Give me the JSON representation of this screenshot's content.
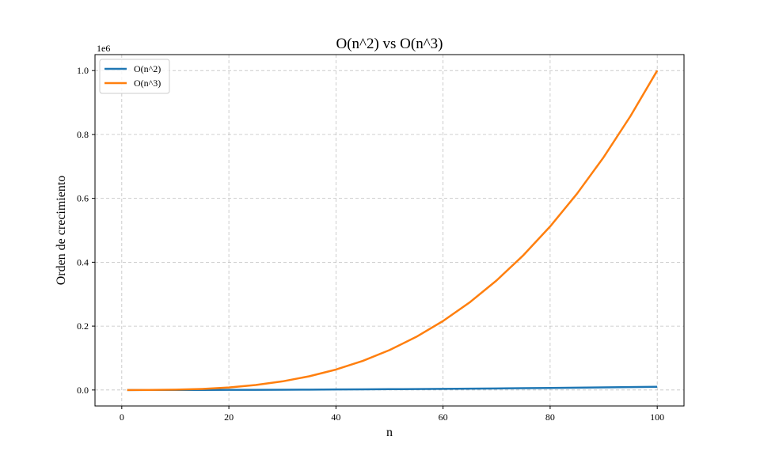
{
  "chart_data": {
    "type": "line",
    "title": "O(n^2) vs O(n^3)",
    "xlabel": "n",
    "ylabel": "Orden de crecimiento",
    "y_offset_text": "1e6",
    "xlim": [
      -5,
      105
    ],
    "ylim": [
      -50000,
      1050000
    ],
    "xticks": [
      0,
      20,
      40,
      60,
      80,
      100
    ],
    "xtick_labels": [
      "0",
      "20",
      "40",
      "60",
      "80",
      "100"
    ],
    "yticks": [
      0,
      200000,
      400000,
      600000,
      800000,
      1000000
    ],
    "ytick_labels": [
      "0.0",
      "0.2",
      "0.4",
      "0.6",
      "0.8",
      "1.0"
    ],
    "grid": true,
    "legend_position": "top-left",
    "x": [
      1,
      5,
      10,
      15,
      20,
      25,
      30,
      35,
      40,
      45,
      50,
      55,
      60,
      65,
      70,
      75,
      80,
      85,
      90,
      95,
      100
    ],
    "series": [
      {
        "name": "O(n^2)",
        "color": "#1f77b4",
        "values": [
          1,
          25,
          100,
          225,
          400,
          625,
          900,
          1225,
          1600,
          2025,
          2500,
          3025,
          3600,
          4225,
          4900,
          5625,
          6400,
          7225,
          8100,
          9025,
          10000
        ]
      },
      {
        "name": "O(n^3)",
        "color": "#ff7f0e",
        "values": [
          1,
          125,
          1000,
          3375,
          8000,
          15625,
          27000,
          42875,
          64000,
          91125,
          125000,
          166375,
          216000,
          274625,
          343000,
          421875,
          512000,
          614125,
          729000,
          857375,
          1000000
        ]
      }
    ]
  }
}
